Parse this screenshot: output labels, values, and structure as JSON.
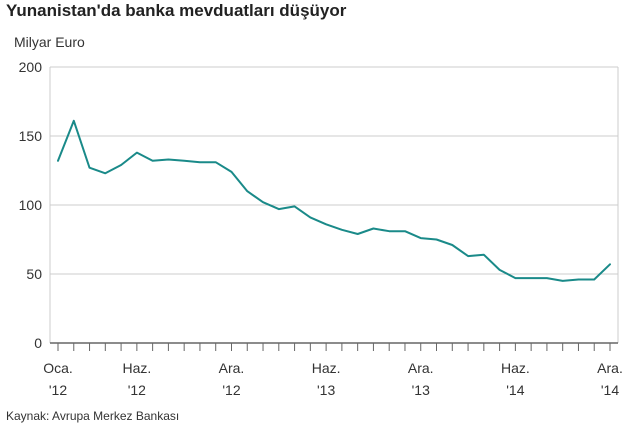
{
  "header": {
    "title": "Yunanistan'da banka mevduatları düşüyor",
    "unit_label": "Milyar Euro"
  },
  "footer": {
    "source": "Kaynak: Avrupa Merkez Bankası"
  },
  "colors": {
    "line": "#1a8a89",
    "grid": "#cccccc",
    "axis": "#666666"
  },
  "chart_data": {
    "type": "line",
    "title": "Yunanistan'da banka mevduatları düşüyor",
    "ylabel": "Milyar Euro",
    "xlabel": "",
    "ylim": [
      0,
      200
    ],
    "yticks": [
      0,
      50,
      100,
      150,
      200
    ],
    "grid": true,
    "x_tick_labels": [
      {
        "month": 1,
        "line1": "Oca.",
        "line2": "'12"
      },
      {
        "month": 6,
        "line1": "Haz.",
        "line2": "'12"
      },
      {
        "month": 12,
        "line1": "Ara.",
        "line2": "'12"
      },
      {
        "month": 18,
        "line1": "Haz.",
        "line2": "'13"
      },
      {
        "month": 24,
        "line1": "Ara.",
        "line2": "'13"
      },
      {
        "month": 30,
        "line1": "Haz.",
        "line2": "'14"
      },
      {
        "month": 36,
        "line1": "Ara.",
        "line2": "'14"
      }
    ],
    "series": [
      {
        "x": [
          "2012-01",
          "2012-02",
          "2012-03",
          "2012-04",
          "2012-05",
          "2012-06",
          "2012-07",
          "2012-08",
          "2012-09",
          "2012-10",
          "2012-11",
          "2012-12",
          "2013-01",
          "2013-02",
          "2013-03",
          "2013-04",
          "2013-05",
          "2013-06",
          "2013-07",
          "2013-08",
          "2013-09",
          "2013-10",
          "2013-11",
          "2013-12",
          "2014-01",
          "2014-02",
          "2014-03",
          "2014-04",
          "2014-05",
          "2014-06",
          "2014-07",
          "2014-08",
          "2014-09",
          "2014-10",
          "2014-11",
          "2014-12"
        ],
        "values": [
          132,
          161,
          127,
          123,
          129,
          138,
          132,
          133,
          132,
          131,
          131,
          124,
          110,
          102,
          97,
          99,
          91,
          86,
          82,
          79,
          83,
          81,
          81,
          76,
          75,
          71,
          63,
          64,
          53,
          47,
          47,
          47,
          45,
          46,
          46,
          57
        ]
      }
    ]
  }
}
